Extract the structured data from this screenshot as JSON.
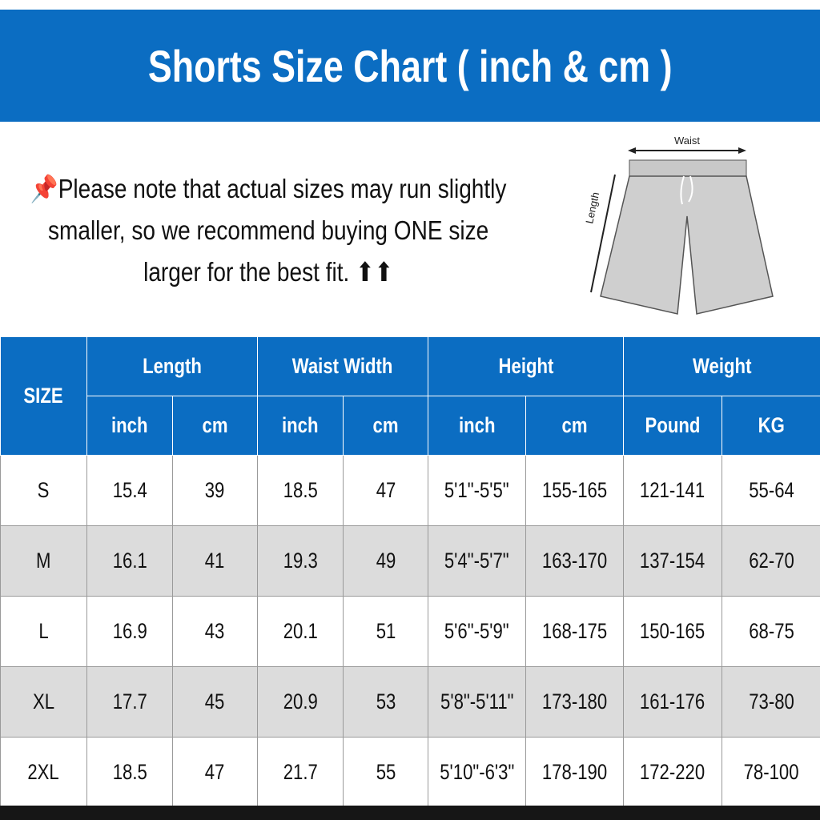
{
  "title": "Shorts Size Chart ( inch & cm )",
  "note": {
    "icon": "pushpin-icon",
    "lines": [
      "Please note that actual sizes may run slightly",
      "smaller, so we recommend buying ONE size",
      "larger for the best fit. ⬆⬆"
    ]
  },
  "diagram": {
    "waist_label": "Waist",
    "length_label": "Length"
  },
  "table": {
    "size_header": "SIZE",
    "groups": [
      "Length",
      "Waist Width",
      "Height",
      "Weight"
    ],
    "units": [
      "inch",
      "cm",
      "inch",
      "cm",
      "inch",
      "cm",
      "Pound",
      "KG"
    ],
    "rows": [
      [
        "S",
        "15.4",
        "39",
        "18.5",
        "47",
        "5'1\"-5'5\"",
        "155-165",
        "121-141",
        "55-64"
      ],
      [
        "M",
        "16.1",
        "41",
        "19.3",
        "49",
        "5'4\"-5'7\"",
        "163-170",
        "137-154",
        "62-70"
      ],
      [
        "L",
        "16.9",
        "43",
        "20.1",
        "51",
        "5'6\"-5'9\"",
        "168-175",
        "150-165",
        "68-75"
      ],
      [
        "XL",
        "17.7",
        "45",
        "20.9",
        "53",
        "5'8\"-5'11\"",
        "173-180",
        "161-176",
        "73-80"
      ],
      [
        "2XL",
        "18.5",
        "47",
        "21.7",
        "55",
        "5'10\"-6'3\"",
        "178-190",
        "172-220",
        "78-100"
      ]
    ]
  },
  "colors": {
    "header_blue": "#0b6dc2",
    "alt_row": "#dcdcdc"
  }
}
